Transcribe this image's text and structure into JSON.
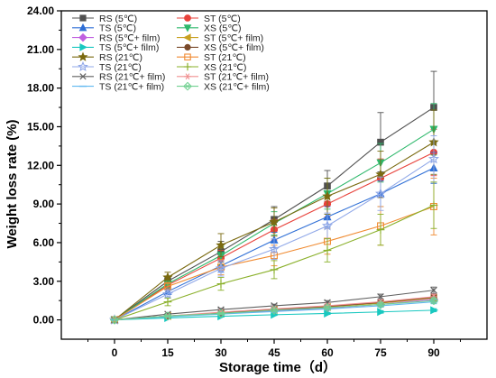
{
  "chart_data": {
    "type": "line",
    "title": "",
    "xlabel": "Storage time（d）",
    "ylabel": "Weight loss rate (%)",
    "x": [
      0,
      15,
      30,
      45,
      60,
      75,
      90
    ],
    "x_ticks": [
      "0",
      "15",
      "30",
      "45",
      "60",
      "75",
      "90"
    ],
    "xlim": [
      -15,
      105
    ],
    "ylim": [
      -1.5,
      24
    ],
    "y_ticks": [
      "0.00",
      "3.00",
      "6.00",
      "9.00",
      "12.00",
      "15.00",
      "18.00",
      "21.00",
      "24.00"
    ],
    "grid": false,
    "legend_position": "top-left, two columns",
    "series": [
      {
        "name": "RS (5℃)",
        "color": "#505050",
        "marker": "square",
        "values": [
          0,
          3.0,
          5.3,
          7.8,
          10.4,
          13.8,
          16.5
        ],
        "error": [
          0,
          0.3,
          0.8,
          1.0,
          1.2,
          2.3,
          2.8
        ]
      },
      {
        "name": "ST (5℃)",
        "color": "#e8423b",
        "marker": "circle",
        "values": [
          0,
          2.7,
          4.8,
          7.0,
          9.0,
          11.0,
          13.0
        ],
        "error": [
          0,
          0.3,
          0.6,
          0.8,
          1.0,
          1.5,
          1.8
        ]
      },
      {
        "name": "TS (5℃)",
        "color": "#2f6fd6",
        "marker": "triangle-up",
        "values": [
          0,
          2.2,
          4.2,
          6.2,
          8.0,
          9.8,
          11.8
        ],
        "error": [
          0,
          0.2,
          0.5,
          0.6,
          0.8,
          1.0,
          1.2
        ]
      },
      {
        "name": "XS (5℃)",
        "color": "#2eb86b",
        "marker": "triangle-down",
        "values": [
          0,
          2.8,
          5.0,
          7.5,
          9.8,
          12.2,
          14.8
        ],
        "error": [
          0,
          0.3,
          0.7,
          0.9,
          1.2,
          1.5,
          2.0
        ]
      },
      {
        "name": "RS (5℃+ film)",
        "color": "#c060e0",
        "marker": "diamond",
        "values": [
          0,
          0.3,
          0.5,
          0.7,
          0.9,
          1.2,
          1.6
        ],
        "error": [
          0,
          0.05,
          0.08,
          0.1,
          0.12,
          0.15,
          0.2
        ]
      },
      {
        "name": "ST (5℃+ film)",
        "color": "#c8a020",
        "marker": "triangle-left",
        "values": [
          0,
          0.3,
          0.5,
          0.8,
          1.0,
          1.3,
          1.7
        ],
        "error": [
          0,
          0.05,
          0.08,
          0.1,
          0.12,
          0.15,
          0.2
        ]
      },
      {
        "name": "TS (5℃+ film)",
        "color": "#19c8c0",
        "marker": "triangle-right",
        "values": [
          0,
          0.15,
          0.28,
          0.4,
          0.5,
          0.62,
          0.75
        ],
        "error": [
          0,
          0.03,
          0.05,
          0.06,
          0.08,
          0.1,
          0.12
        ]
      },
      {
        "name": "XS (5℃+ film)",
        "color": "#7a4a2a",
        "marker": "hexagon",
        "values": [
          0,
          0.3,
          0.55,
          0.8,
          1.05,
          1.35,
          1.75
        ],
        "error": [
          0,
          0.05,
          0.08,
          0.1,
          0.12,
          0.15,
          0.2
        ]
      },
      {
        "name": "RS (21℃)",
        "color": "#7a6a10",
        "marker": "star",
        "values": [
          0,
          3.3,
          5.8,
          7.6,
          9.6,
          11.3,
          13.8
        ],
        "error": [
          0,
          0.4,
          0.9,
          1.1,
          1.4,
          1.8,
          2.5
        ]
      },
      {
        "name": "ST (21℃)",
        "color": "#f08a30",
        "marker": "open-square",
        "values": [
          0,
          2.6,
          4.1,
          5.0,
          6.1,
          7.3,
          8.8
        ],
        "error": [
          0,
          0.3,
          0.6,
          0.8,
          1.0,
          1.5,
          2.2
        ]
      },
      {
        "name": "TS (21℃)",
        "color": "#90a8e8",
        "marker": "open-star",
        "values": [
          0,
          2.0,
          4.0,
          5.5,
          7.3,
          9.8,
          12.5
        ],
        "error": [
          0,
          0.3,
          0.6,
          0.8,
          1.0,
          1.3,
          1.8
        ]
      },
      {
        "name": "XS (21℃)",
        "color": "#8ab02a",
        "marker": "plus",
        "values": [
          0,
          1.4,
          2.8,
          3.9,
          5.4,
          7.0,
          8.9
        ],
        "error": [
          0,
          0.3,
          0.5,
          0.7,
          0.9,
          1.2,
          1.8
        ]
      },
      {
        "name": "RS (21℃+ film)",
        "color": "#606060",
        "marker": "x",
        "values": [
          0,
          0.45,
          0.8,
          1.1,
          1.35,
          1.8,
          2.3
        ],
        "error": [
          0,
          0.05,
          0.1,
          0.12,
          0.15,
          0.2,
          0.25
        ]
      },
      {
        "name": "ST (21℃+ film)",
        "color": "#f09090",
        "marker": "asterisk",
        "values": [
          0,
          0.3,
          0.6,
          0.85,
          1.1,
          1.4,
          1.8
        ],
        "error": [
          0,
          0.05,
          0.08,
          0.1,
          0.12,
          0.15,
          0.2
        ]
      },
      {
        "name": "TS (21℃+ film)",
        "color": "#60b8f0",
        "marker": "dash",
        "values": [
          0,
          0.25,
          0.45,
          0.65,
          0.85,
          1.1,
          1.4
        ],
        "error": [
          0,
          0.04,
          0.06,
          0.08,
          0.1,
          0.12,
          0.15
        ]
      },
      {
        "name": "XS (21℃+ film)",
        "color": "#70d090",
        "marker": "open-x-diamond",
        "values": [
          0,
          0.3,
          0.5,
          0.75,
          0.95,
          1.2,
          1.5
        ],
        "error": [
          0,
          0.05,
          0.08,
          0.1,
          0.12,
          0.15,
          0.2
        ]
      }
    ]
  }
}
